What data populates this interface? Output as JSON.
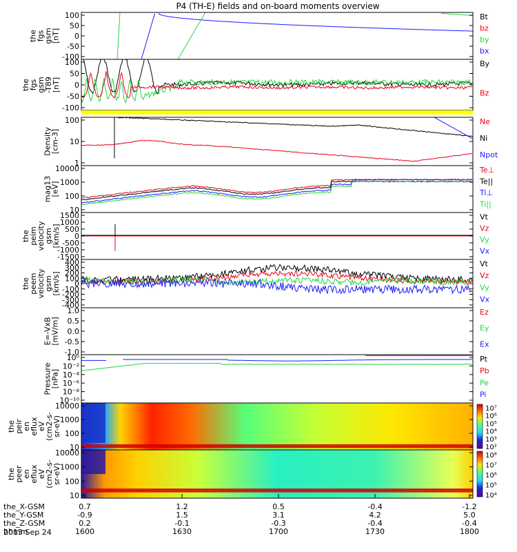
{
  "chart_data": {
    "type": "line",
    "title": "P4 (TH-E) fields and on-board moments overview",
    "date": "2013 Sep 24",
    "colors": {
      "black": "#000000",
      "red": "#e8001c",
      "green": "#22d83a",
      "blue": "#1a1aff",
      "yellow": "#ffff00"
    },
    "panels": [
      {
        "id": "fgs",
        "ylabel": [
          "the",
          "fgs",
          "gsm",
          "[nT]"
        ],
        "yticks": [
          "100",
          "50",
          "0",
          "-50",
          "-100"
        ],
        "ylim": [
          -100,
          100
        ],
        "legend": [
          {
            "text": "Bt",
            "color": "#000000"
          },
          {
            "text": "bz",
            "color": "#e8001c"
          },
          {
            "text": "by",
            "color": "#22d83a"
          },
          {
            "text": "bx",
            "color": "#1a1aff"
          }
        ]
      },
      {
        "id": "fgs-dsl",
        "ylabel": [
          "the",
          "fgs",
          "gsm",
          "-T89",
          "[nT]"
        ],
        "yticks": [
          "100",
          "50",
          "0",
          "-50",
          "-100"
        ],
        "ylim": [
          -120,
          100
        ],
        "legend": [
          {
            "text": "By",
            "color": "#000000"
          },
          {
            "text": "Bz",
            "color": "#e8001c"
          }
        ]
      },
      {
        "id": "density",
        "ylabel": [
          "Density",
          "[cm-3]"
        ],
        "yticks": [
          "100",
          "10",
          "1"
        ],
        "yscale": "log",
        "legend": [
          {
            "text": "Ne",
            "color": "#e8001c"
          },
          {
            "text": "Ni",
            "color": "#000000"
          },
          {
            "text": "Npot",
            "color": "#1a1aff"
          }
        ]
      },
      {
        "id": "temperature",
        "ylabel": [
          "mag13",
          "[eV]"
        ],
        "yticks": [
          "10000",
          "1000",
          "100",
          "10"
        ],
        "yscale": "log",
        "legend": [
          {
            "text": "Te⊥",
            "color": "#e8001c"
          },
          {
            "text": "Te||",
            "color": "#000000"
          },
          {
            "text": "Ti⊥",
            "color": "#1a1aff"
          },
          {
            "text": "Ti||",
            "color": "#22d83a"
          }
        ]
      },
      {
        "id": "peim-vel",
        "ylabel": [
          "the",
          "peim",
          "velocity",
          "gsm",
          "[km/s]"
        ],
        "yticks": [
          "1500",
          "1000",
          "500",
          "0",
          "-500",
          "-1000",
          "-1500"
        ],
        "ylim": [
          -1500,
          1500
        ],
        "legend": [
          {
            "text": "Vt",
            "color": "#000000"
          },
          {
            "text": "Vz",
            "color": "#e8001c"
          },
          {
            "text": "Vy",
            "color": "#22d83a"
          },
          {
            "text": "Vx",
            "color": "#1a1aff"
          }
        ]
      },
      {
        "id": "peem-vel",
        "ylabel": [
          "the",
          "peem",
          "velocity",
          "gsm",
          "[km/s]"
        ],
        "yticks": [
          "400",
          "300",
          "200",
          "100",
          "0",
          "-100",
          "-200",
          "-300",
          "-400"
        ],
        "ylim": [
          -400,
          400
        ],
        "legend": [
          {
            "text": "Vt",
            "color": "#000000"
          },
          {
            "text": "Vz",
            "color": "#e8001c"
          },
          {
            "text": "Vy",
            "color": "#22d83a"
          },
          {
            "text": "Vx",
            "color": "#1a1aff"
          }
        ]
      },
      {
        "id": "efield",
        "ylabel": [
          "E=-VxB",
          "[mV/m]"
        ],
        "yticks": [
          "1.0",
          "0.5",
          "0.0",
          "-0.5",
          "-1.0"
        ],
        "ylim": [
          -1,
          1
        ],
        "legend": [
          {
            "text": "Ez",
            "color": "#e8001c"
          },
          {
            "text": "Ey",
            "color": "#22d83a"
          },
          {
            "text": "Ex",
            "color": "#1a1aff"
          }
        ]
      },
      {
        "id": "pressure",
        "ylabel": [
          "Pressure",
          "[nPa]"
        ],
        "yticks": [
          "10⁰",
          "10⁻²",
          "10⁻⁴",
          "10⁻⁶",
          "10⁻⁸",
          "10⁻¹⁰"
        ],
        "yscale": "log",
        "legend": [
          {
            "text": "Pt",
            "color": "#000000"
          },
          {
            "text": "Pb",
            "color": "#e8001c"
          },
          {
            "text": "Pe",
            "color": "#22d83a"
          },
          {
            "text": "Pi",
            "color": "#1a1aff"
          }
        ]
      },
      {
        "id": "peir-spec",
        "type": "heatmap",
        "ylabel": [
          "the",
          "peir",
          "en",
          "eflux",
          "eV",
          "(cm2-s-",
          "sr-eV)"
        ],
        "yticks": [
          "10000",
          "1000",
          "100",
          "10"
        ],
        "colorbar_ticks": [
          "10⁷",
          "10⁶",
          "10⁵",
          "10⁴",
          "10³",
          "10²"
        ]
      },
      {
        "id": "peer-spec",
        "type": "heatmap",
        "ylabel": [
          "the",
          "peer",
          "en",
          "eflux",
          "eV",
          "(cm2-s-",
          "sr-eV)"
        ],
        "yticks": [
          "10000",
          "1000",
          "100",
          "10"
        ],
        "colorbar_ticks": [
          "10⁸",
          "10⁷",
          "10⁶",
          "10⁵",
          "10⁴"
        ]
      }
    ],
    "xaxis": {
      "rows": [
        {
          "label": "the_X-GSM",
          "values": [
            "0.7",
            "1.2",
            "0.5",
            "-0.4",
            "-1.2"
          ]
        },
        {
          "label": "the_Y-GSM",
          "values": [
            "-0.9",
            "1.5",
            "3.1",
            "4.2",
            "5.0"
          ]
        },
        {
          "label": "the_Z-GSM",
          "values": [
            "0.2",
            "-0.1",
            "-0.3",
            "-0.4",
            "-0.4"
          ]
        },
        {
          "label": "hhmm",
          "values": [
            "1600",
            "1630",
            "1700",
            "1730",
            "1800"
          ]
        }
      ]
    }
  }
}
